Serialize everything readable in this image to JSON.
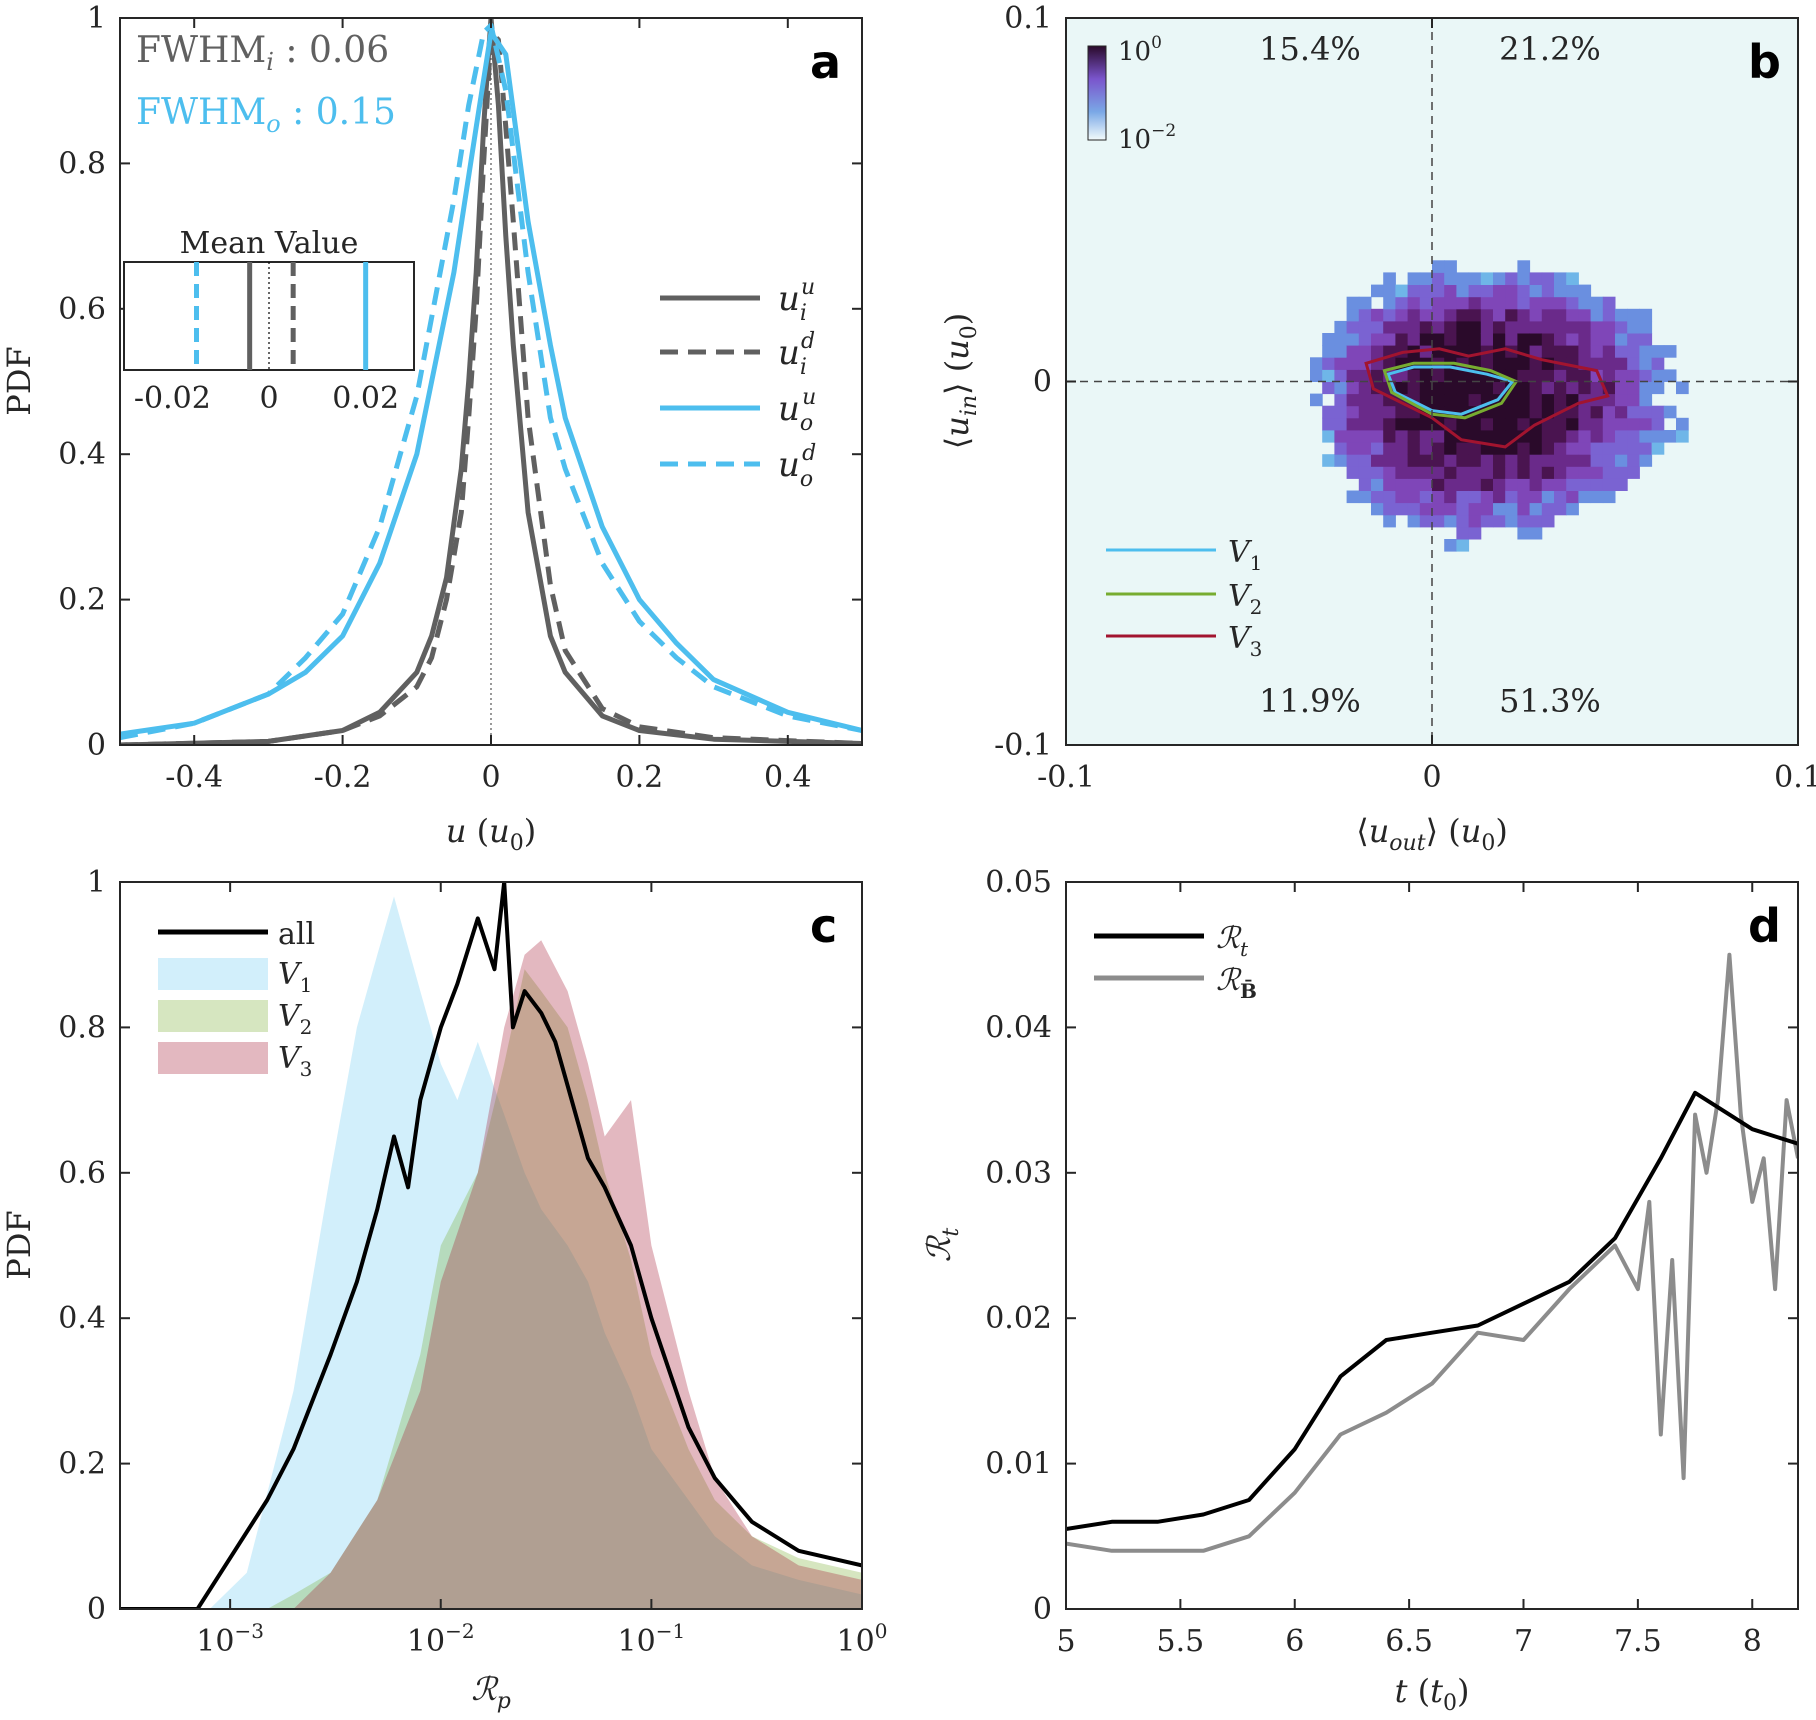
{
  "colors": {
    "gray": "#606060",
    "blue": "#4dbeee",
    "green": "#77ac30",
    "red": "#a2142f",
    "black": "#000000",
    "midgray": "#8c8c8c"
  },
  "chart_data": [
    {
      "panel": "a",
      "type": "line",
      "xlabel": "u (u0)",
      "ylabel": "PDF",
      "xlim": [
        -0.5,
        0.5
      ],
      "ylim": [
        0,
        1
      ],
      "xticks": [
        "-0.4",
        "-0.2",
        "0",
        "0.2",
        "0.4"
      ],
      "yticks": [
        "0",
        "0.2",
        "0.4",
        "0.6",
        "0.8",
        "1"
      ],
      "annotations": [
        "FWHMi : 0.06",
        "FWHMo : 0.15"
      ],
      "legend": {
        "position": "right",
        "entries": [
          "u_i^u",
          "u_i^d",
          "u_o^u",
          "u_o^d"
        ]
      },
      "series": [
        {
          "name": "u_i^u",
          "style": "solid",
          "color": "gray",
          "x": [
            -0.5,
            -0.3,
            -0.2,
            -0.15,
            -0.1,
            -0.08,
            -0.06,
            -0.04,
            -0.03,
            -0.02,
            -0.01,
            0.0,
            0.01,
            0.02,
            0.03,
            0.05,
            0.08,
            0.1,
            0.15,
            0.2,
            0.3,
            0.5
          ],
          "y": [
            0.0,
            0.005,
            0.02,
            0.045,
            0.1,
            0.15,
            0.23,
            0.38,
            0.5,
            0.65,
            0.85,
            1.0,
            0.88,
            0.7,
            0.55,
            0.32,
            0.15,
            0.1,
            0.04,
            0.02,
            0.008,
            0.002
          ]
        },
        {
          "name": "u_i^d",
          "style": "dashed",
          "color": "gray",
          "x": [
            -0.5,
            -0.3,
            -0.2,
            -0.15,
            -0.1,
            -0.08,
            -0.06,
            -0.04,
            -0.03,
            -0.02,
            -0.01,
            0.0,
            0.01,
            0.02,
            0.03,
            0.05,
            0.08,
            0.1,
            0.15,
            0.2,
            0.3,
            0.5
          ],
          "y": [
            0.0,
            0.005,
            0.02,
            0.04,
            0.08,
            0.12,
            0.2,
            0.32,
            0.45,
            0.6,
            0.8,
            0.98,
            0.97,
            0.85,
            0.72,
            0.45,
            0.22,
            0.13,
            0.05,
            0.025,
            0.01,
            0.002
          ]
        },
        {
          "name": "u_o^u",
          "style": "solid",
          "color": "blue",
          "x": [
            -0.5,
            -0.4,
            -0.3,
            -0.25,
            -0.2,
            -0.15,
            -0.1,
            -0.05,
            -0.02,
            0.0,
            0.02,
            0.05,
            0.08,
            0.1,
            0.15,
            0.2,
            0.25,
            0.3,
            0.4,
            0.5
          ],
          "y": [
            0.015,
            0.03,
            0.07,
            0.1,
            0.15,
            0.25,
            0.4,
            0.65,
            0.85,
            0.98,
            0.95,
            0.72,
            0.55,
            0.45,
            0.3,
            0.2,
            0.14,
            0.09,
            0.045,
            0.02
          ]
        },
        {
          "name": "u_o^d",
          "style": "dashed",
          "color": "blue",
          "x": [
            -0.5,
            -0.4,
            -0.3,
            -0.25,
            -0.2,
            -0.15,
            -0.1,
            -0.05,
            -0.03,
            -0.01,
            0.0,
            0.02,
            0.05,
            0.08,
            0.1,
            0.15,
            0.2,
            0.25,
            0.3,
            0.4,
            0.5
          ],
          "y": [
            0.01,
            0.03,
            0.07,
            0.12,
            0.18,
            0.3,
            0.48,
            0.75,
            0.88,
            0.98,
            0.99,
            0.9,
            0.65,
            0.45,
            0.38,
            0.25,
            0.17,
            0.12,
            0.08,
            0.04,
            0.02
          ]
        }
      ],
      "inset": {
        "title": "Mean Value",
        "xlim": [
          -0.03,
          0.03
        ],
        "xticks": [
          "-0.02",
          "0",
          "0.02"
        ],
        "lines": [
          {
            "x": -0.015,
            "color": "blue",
            "style": "dashed"
          },
          {
            "x": -0.004,
            "color": "gray",
            "style": "solid"
          },
          {
            "x": 0.0,
            "color": "black",
            "style": "dotted"
          },
          {
            "x": 0.005,
            "color": "gray",
            "style": "dashed"
          },
          {
            "x": 0.02,
            "color": "blue",
            "style": "solid"
          }
        ]
      }
    },
    {
      "panel": "b",
      "type": "heatmap",
      "xlabel": "⟨u_out⟩ (u0)",
      "ylabel": "⟨u_in⟩ (u0)",
      "xlim": [
        -0.1,
        0.1
      ],
      "ylim": [
        -0.1,
        0.1
      ],
      "xticks": [
        "-0.1",
        "0",
        "0.1"
      ],
      "yticks": [
        "-0.1",
        "0",
        "0.1"
      ],
      "colorbar": {
        "max_label": "10^0",
        "min_label": "10^-2",
        "log": true
      },
      "quadrant_percentages": {
        "top_left": "15.4%",
        "top_right": "21.2%",
        "bottom_left": "11.9%",
        "bottom_right": "51.3%"
      },
      "legend": {
        "position": "bottom-left",
        "entries": [
          "V1",
          "V2",
          "V3"
        ]
      },
      "density_peak": {
        "x": 0.01,
        "y": -0.002,
        "sx": 0.018,
        "sy": 0.011
      },
      "contours": [
        {
          "name": "V1",
          "color": "blue",
          "x": [
            -0.012,
            -0.005,
            0.005,
            0.015,
            0.022,
            0.018,
            0.008,
            0.0,
            -0.01,
            -0.012
          ],
          "y": [
            0.002,
            0.004,
            0.004,
            0.002,
            0.0,
            -0.005,
            -0.009,
            -0.008,
            -0.003,
            0.002
          ]
        },
        {
          "name": "V2",
          "color": "green",
          "x": [
            -0.013,
            -0.005,
            0.006,
            0.016,
            0.023,
            0.019,
            0.009,
            0.0,
            -0.011,
            -0.013
          ],
          "y": [
            0.003,
            0.005,
            0.005,
            0.003,
            0.0,
            -0.006,
            -0.01,
            -0.009,
            -0.003,
            0.003
          ]
        },
        {
          "name": "V3",
          "color": "red",
          "x": [
            -0.018,
            -0.008,
            0.002,
            0.01,
            0.02,
            0.03,
            0.045,
            0.048,
            0.04,
            0.028,
            0.02,
            0.008,
            0.0,
            -0.008,
            -0.016,
            -0.018
          ],
          "y": [
            0.005,
            0.008,
            0.009,
            0.007,
            0.009,
            0.006,
            0.003,
            -0.004,
            -0.006,
            -0.012,
            -0.018,
            -0.016,
            -0.01,
            -0.006,
            -0.002,
            0.005
          ]
        }
      ]
    },
    {
      "panel": "c",
      "type": "area",
      "xlabel": "R_p",
      "ylabel": "PDF",
      "xscale": "log",
      "xlim": [
        0.0003,
        1
      ],
      "ylim": [
        0,
        1
      ],
      "xticks": [
        "10^-3",
        "10^-2",
        "10^-1",
        "10^0"
      ],
      "yticks": [
        "0",
        "0.2",
        "0.4",
        "0.6",
        "0.8",
        "1"
      ],
      "legend": {
        "position": "top-left",
        "entries": [
          "all",
          "V1",
          "V2",
          "V3"
        ]
      },
      "series": [
        {
          "name": "all",
          "kind": "line",
          "color": "black",
          "x": [
            0.0003,
            0.0007,
            0.001,
            0.0015,
            0.002,
            0.003,
            0.004,
            0.005,
            0.006,
            0.007,
            0.008,
            0.01,
            0.012,
            0.015,
            0.018,
            0.02,
            0.022,
            0.025,
            0.03,
            0.035,
            0.04,
            0.05,
            0.06,
            0.08,
            0.1,
            0.15,
            0.2,
            0.3,
            0.5,
            1.0
          ],
          "y": [
            0.0,
            0.0,
            0.07,
            0.15,
            0.22,
            0.35,
            0.45,
            0.55,
            0.65,
            0.58,
            0.7,
            0.8,
            0.86,
            0.95,
            0.88,
            1.0,
            0.8,
            0.85,
            0.82,
            0.78,
            0.72,
            0.62,
            0.58,
            0.5,
            0.4,
            0.25,
            0.18,
            0.12,
            0.08,
            0.06
          ]
        },
        {
          "name": "V1",
          "kind": "area",
          "color": "blue",
          "x": [
            0.0003,
            0.0008,
            0.0012,
            0.002,
            0.003,
            0.004,
            0.005,
            0.006,
            0.008,
            0.01,
            0.012,
            0.015,
            0.02,
            0.025,
            0.03,
            0.04,
            0.05,
            0.06,
            0.08,
            0.1,
            0.15,
            0.2,
            0.3,
            0.5,
            1.0
          ],
          "y": [
            0.0,
            0.0,
            0.05,
            0.3,
            0.6,
            0.8,
            0.9,
            0.98,
            0.85,
            0.75,
            0.7,
            0.78,
            0.68,
            0.6,
            0.55,
            0.5,
            0.45,
            0.38,
            0.3,
            0.22,
            0.15,
            0.1,
            0.06,
            0.04,
            0.02
          ]
        },
        {
          "name": "V2",
          "kind": "area",
          "color": "green",
          "x": [
            0.0003,
            0.0015,
            0.002,
            0.003,
            0.005,
            0.008,
            0.01,
            0.015,
            0.02,
            0.025,
            0.03,
            0.04,
            0.05,
            0.06,
            0.08,
            0.1,
            0.15,
            0.2,
            0.3,
            0.5,
            1.0
          ],
          "y": [
            0.0,
            0.0,
            0.02,
            0.05,
            0.15,
            0.35,
            0.5,
            0.6,
            0.75,
            0.88,
            0.85,
            0.8,
            0.7,
            0.6,
            0.48,
            0.35,
            0.22,
            0.15,
            0.1,
            0.07,
            0.05
          ]
        },
        {
          "name": "V3",
          "kind": "area",
          "color": "red",
          "x": [
            0.0003,
            0.002,
            0.003,
            0.005,
            0.008,
            0.01,
            0.015,
            0.02,
            0.025,
            0.03,
            0.04,
            0.05,
            0.06,
            0.08,
            0.1,
            0.15,
            0.2,
            0.3,
            0.5,
            1.0
          ],
          "y": [
            0.0,
            0.0,
            0.05,
            0.15,
            0.3,
            0.45,
            0.6,
            0.8,
            0.9,
            0.92,
            0.85,
            0.75,
            0.65,
            0.7,
            0.5,
            0.3,
            0.18,
            0.1,
            0.06,
            0.04
          ]
        }
      ]
    },
    {
      "panel": "d",
      "type": "line",
      "xlabel": "t (t0)",
      "ylabel": "R_t",
      "xlim": [
        5,
        8.2
      ],
      "ylim": [
        0,
        0.05
      ],
      "xticks": [
        "5",
        "5.5",
        "6",
        "6.5",
        "7",
        "7.5",
        "8"
      ],
      "yticks": [
        "0",
        "0.01",
        "0.02",
        "0.03",
        "0.04",
        "0.05"
      ],
      "legend": {
        "position": "top-left",
        "entries": [
          "R_t",
          "R_B̄"
        ]
      },
      "series": [
        {
          "name": "R_t",
          "color": "black",
          "x": [
            5.0,
            5.2,
            5.4,
            5.6,
            5.8,
            6.0,
            6.2,
            6.4,
            6.6,
            6.8,
            7.0,
            7.2,
            7.4,
            7.6,
            7.75,
            7.9,
            8.0,
            8.2
          ],
          "y": [
            0.0055,
            0.006,
            0.006,
            0.0065,
            0.0075,
            0.011,
            0.016,
            0.0185,
            0.019,
            0.0195,
            0.021,
            0.0225,
            0.0255,
            0.031,
            0.0355,
            0.034,
            0.033,
            0.032
          ]
        },
        {
          "name": "R_B̄",
          "color": "midgray",
          "x": [
            5.0,
            5.2,
            5.4,
            5.6,
            5.8,
            6.0,
            6.2,
            6.4,
            6.6,
            6.8,
            7.0,
            7.2,
            7.4,
            7.5,
            7.55,
            7.6,
            7.65,
            7.7,
            7.75,
            7.8,
            7.85,
            7.9,
            7.95,
            8.0,
            8.05,
            8.1,
            8.15,
            8.2
          ],
          "y": [
            0.0045,
            0.004,
            0.004,
            0.004,
            0.005,
            0.008,
            0.012,
            0.0135,
            0.0155,
            0.019,
            0.0185,
            0.022,
            0.025,
            0.022,
            0.028,
            0.012,
            0.024,
            0.009,
            0.034,
            0.03,
            0.035,
            0.045,
            0.034,
            0.028,
            0.031,
            0.022,
            0.035,
            0.031
          ]
        }
      ]
    }
  ]
}
